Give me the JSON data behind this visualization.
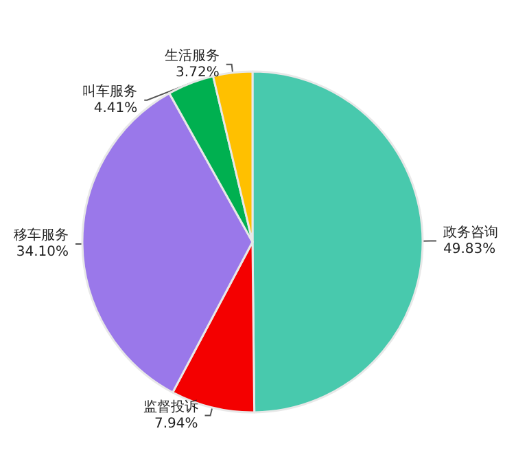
{
  "chart_data": {
    "type": "pie",
    "categories": [
      "政务咨询",
      "监督投诉",
      "移车服务",
      "叫车服务",
      "生活服务"
    ],
    "values": [
      49.83,
      7.94,
      34.1,
      4.41,
      3.72
    ],
    "value_labels": [
      "49.83%",
      "7.94%",
      "34.10%",
      "4.41%",
      "3.72%"
    ],
    "colors": [
      "#48c9ad",
      "#f40000",
      "#9a78ea",
      "#00b050",
      "#ffc000"
    ],
    "legend": false
  }
}
